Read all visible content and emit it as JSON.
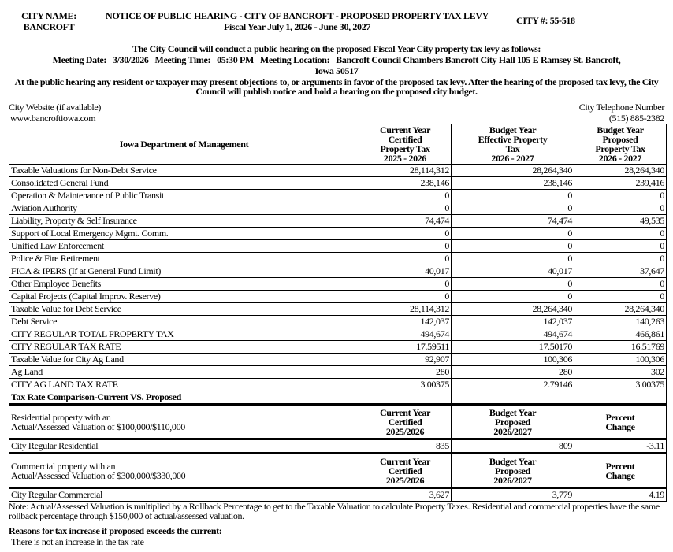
{
  "header": {
    "city_name_label": "CITY NAME:",
    "city_name": "BANCROFT",
    "title": "NOTICE OF PUBLIC HEARING - CITY OF BANCROFT - PROPOSED PROPERTY TAX LEVY",
    "fiscal_year": "Fiscal Year July 1, 2026 - June 30, 2027",
    "city_number": "CITY #: 55-518"
  },
  "meeting": {
    "intro": "The City Council will conduct a public hearing on the proposed Fiscal Year City property tax levy as follows:",
    "date_label": "Meeting Date:",
    "date": "3/30/2026",
    "time_label": "Meeting Time:",
    "time": "05:30 PM",
    "location_label": "Meeting Location:",
    "location": "Bancroft Council Chambers Bancroft City Hall 105 E Ramsey St. Bancroft,",
    "location_line2": "Iowa 50517",
    "hearing_text": "At the public hearing any resident or taxpayer may present objections to, or arguments in favor of the proposed tax levy. After the hearing of the proposed tax levy, the City Council will publish notice and hold a hearing on the proposed city budget."
  },
  "contact": {
    "website_label": "City Website (if available)",
    "website": "www.bancroftiowa.com",
    "phone_label": "City Telephone Number",
    "phone": "(515) 885-2382"
  },
  "table": {
    "headers": [
      "Iowa Department of Management",
      "Current Year\nCertified\nProperty Tax\n2025 - 2026",
      "Budget Year\nEffective Property\nTax\n2026 - 2027",
      "Budget Year\nProposed\nProperty Tax\n2026 - 2027"
    ],
    "rows": [
      [
        "Taxable Valuations for Non-Debt Service",
        "28,114,312",
        "28,264,340",
        "28,264,340"
      ],
      [
        "Consolidated General Fund",
        "238,146",
        "238,146",
        "239,416"
      ],
      [
        "Operation & Maintenance of Public Transit",
        "0",
        "0",
        "0"
      ],
      [
        "Aviation Authority",
        "0",
        "0",
        "0"
      ],
      [
        "Liability, Property & Self Insurance",
        "74,474",
        "74,474",
        "49,535"
      ],
      [
        "Support of Local Emergency Mgmt. Comm.",
        "0",
        "0",
        "0"
      ],
      [
        "Unified Law Enforcement",
        "0",
        "0",
        "0"
      ],
      [
        "Police & Fire Retirement",
        "0",
        "0",
        "0"
      ],
      [
        "FICA & IPERS (If at General Fund Limit)",
        "40,017",
        "40,017",
        "37,647"
      ],
      [
        "Other Employee Benefits",
        "0",
        "0",
        "0"
      ],
      [
        "Capital Projects (Capital Improv. Reserve)",
        "0",
        "0",
        "0"
      ],
      [
        "Taxable Value for Debt Service",
        "28,114,312",
        "28,264,340",
        "28,264,340"
      ],
      [
        "Debt Service",
        "142,037",
        "142,037",
        "140,263"
      ],
      [
        "CITY REGULAR TOTAL PROPERTY TAX",
        "494,674",
        "494,674",
        "466,861"
      ],
      [
        "CITY REGULAR TAX RATE",
        "17.59511",
        "17.50170",
        "16.51769"
      ],
      [
        "Taxable Value for City Ag Land",
        "92,907",
        "100,306",
        "100,306"
      ],
      [
        "Ag Land",
        "280",
        "280",
        "302"
      ],
      [
        "CITY AG LAND TAX RATE",
        "3.00375",
        "2.79146",
        "3.00375"
      ]
    ],
    "comparison_title": "Tax Rate Comparison-Current VS. Proposed"
  },
  "residential": {
    "label": "Residential property with an\nActual/Assessed Valuation of $100,000/$110,000",
    "headers": [
      "Current Year\nCertified\n2025/2026",
      "Budget Year\nProposed\n2026/2027",
      "Percent\nChange"
    ],
    "row": [
      "City Regular Residential",
      "835",
      "809",
      "-3.11"
    ]
  },
  "commercial": {
    "label": "Commercial property with an\nActual/Assessed Valuation of $300,000/$330,000",
    "headers": [
      "Current Year\nCertified\n2025/2026",
      "Budget Year\nProposed\n2026/2027",
      "Percent\nChange"
    ],
    "row": [
      "City Regular Commercial",
      "3,627",
      "3,779",
      "4.19"
    ]
  },
  "footer": {
    "note": "Note: Actual/Assessed Valuation is multiplied by a Rollback Percentage to get to the Taxable Valuation to calculate Property Taxes. Residential and commercial properties have the same rollback percentage through $150,000 of actual/assessed valuation.",
    "reasons_label": "Reasons for tax increase if proposed exceeds the current:",
    "reasons": "There is not an increase in the tax rate"
  }
}
